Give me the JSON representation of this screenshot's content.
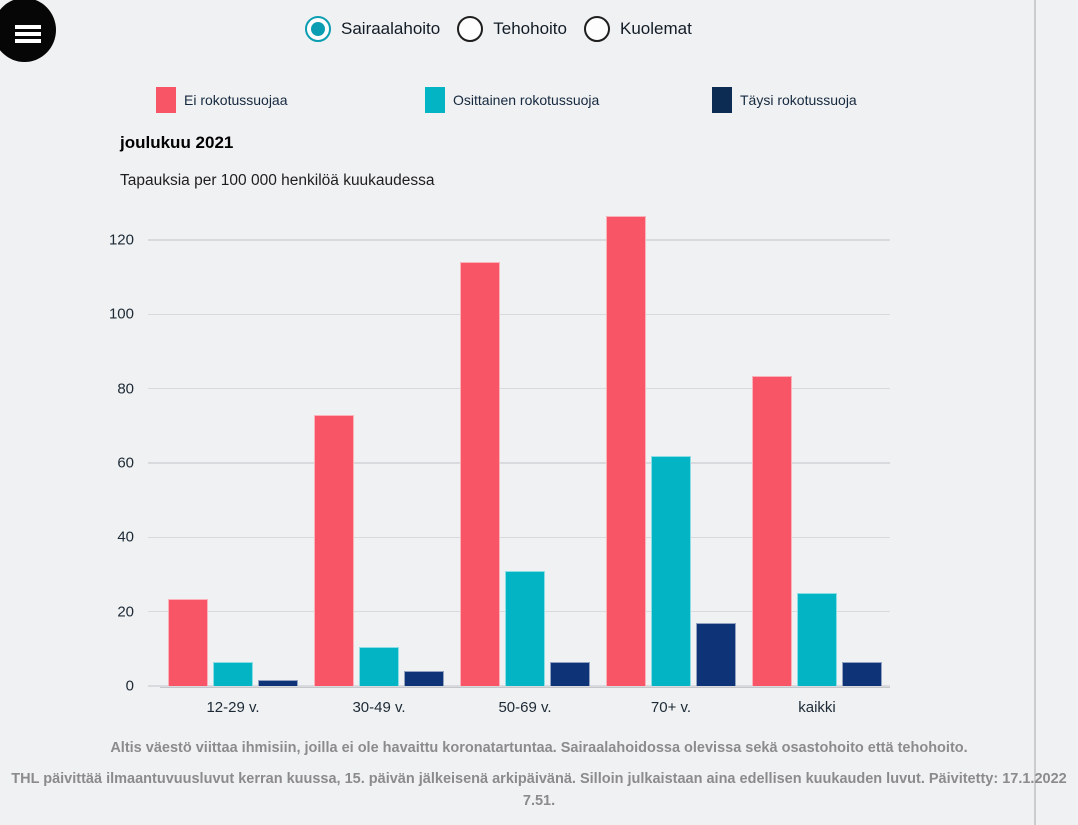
{
  "menu": {
    "icon": "hamburger-menu"
  },
  "view_options": [
    {
      "label": "Sairaalahoito",
      "selected": true
    },
    {
      "label": "Tehohoito",
      "selected": false
    },
    {
      "label": "Kuolemat",
      "selected": false
    }
  ],
  "colors": {
    "no_protection": "#f85567",
    "partial_protection": "#03b5c4",
    "full_protection_legend": "#0d2c54",
    "full_protection_bar": "#0e3377",
    "radio_accent": "#0b9eb2",
    "background": "#f0f1f2"
  },
  "legend": [
    {
      "label": "Ei rokotussuojaa",
      "color": "#f85567"
    },
    {
      "label": "Osittainen rokotussuoja",
      "color": "#03b5c4"
    },
    {
      "label": "Täysi rokotussuoja",
      "color": "#0d2c54"
    }
  ],
  "chart_data": {
    "type": "bar",
    "title": "joulukuu 2021",
    "subtitle": "Tapauksia per 100 000 henkilöä kuukaudessa",
    "categories": [
      "12-29 v.",
      "30-49 v.",
      "50-69 v.",
      "70+ v.",
      "kaikki"
    ],
    "series": [
      {
        "name": "Ei rokotussuojaa",
        "color": "#f85567",
        "values": [
          23.5,
          73,
          114,
          126.5,
          83.5
        ]
      },
      {
        "name": "Osittainen rokotussuoja",
        "color": "#03b5c4",
        "values": [
          6.5,
          10.5,
          31,
          62,
          25
        ]
      },
      {
        "name": "Täysi rokotussuoja",
        "color": "#0e3377",
        "values": [
          1.5,
          4,
          6.5,
          17,
          6.5
        ]
      }
    ],
    "xlabel": "",
    "ylabel": "Tapauksia per 100 000 henkilöä kuukaudessa",
    "yticks": [
      0,
      20,
      40,
      60,
      80,
      100,
      120
    ],
    "ylim": [
      0,
      131
    ],
    "grid": true,
    "legend_position": "top"
  },
  "footer": {
    "line1": "Altis väestö viittaa ihmisiin, joilla ei ole havaittu koronatartuntaa. Sairaalahoidossa olevissa sekä osastohoito että tehohoito.",
    "line2": "THL päivittää ilmaantuvuusluvut kerran kuussa, 15. päivän jälkeisenä arkipäivänä. Silloin julkaistaan aina edellisen kuukauden luvut. Päivitetty: 17.1.2022 7.51."
  }
}
